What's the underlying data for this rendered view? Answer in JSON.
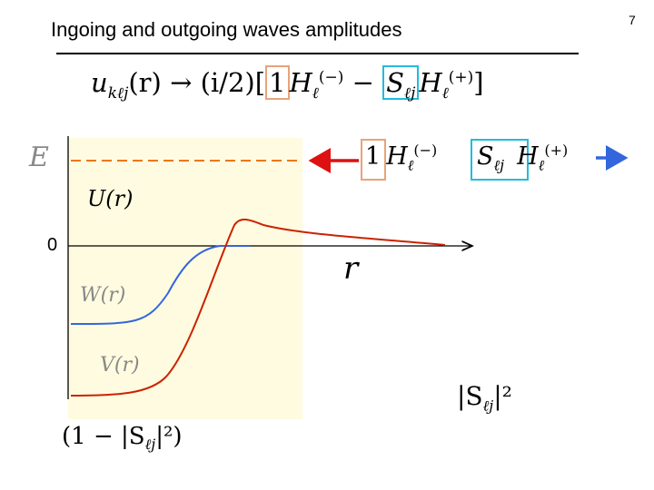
{
  "slide": {
    "title": "Ingoing and outgoing waves amplitudes",
    "page_number": "7"
  },
  "formula": {
    "lhs": "u",
    "lhs_sub": "kℓj",
    "lhs_arg": "(r)",
    "arrow": "→",
    "factor": "(i/2)[",
    "one": "1",
    "h": "H",
    "h_sub": "ℓ",
    "h_minus_sup": "(−)",
    "minus": "−",
    "s": "S",
    "s_sub": "ℓj",
    "h_plus_sup": "(+)",
    "close": "]"
  },
  "diagram": {
    "energy_label": "E",
    "zero_label": "0",
    "u_label": "U(r)",
    "w_label": "W(r)",
    "v_label": "V(r)",
    "r_label": "r",
    "loss_label": "(1 − |S",
    "loss_sub": "ℓj",
    "loss_tail": "|²)",
    "abs_s_label": "|S",
    "abs_s_sub": "ℓj",
    "abs_s_tail": "|²",
    "ingoing_one": "1",
    "ingoing_h": "H",
    "ingoing_sub": "ℓ",
    "ingoing_sup": "(−)",
    "outgoing_s": "S",
    "outgoing_s_sub": "ℓj",
    "outgoing_h": "H",
    "outgoing_h_sub": "ℓ",
    "outgoing_h_sup": "(+)"
  },
  "colors": {
    "region_fill": "#fffbe0",
    "energy_line": "#ee7700",
    "real_potential": "#cc2200",
    "imag_potential": "#3366dd",
    "ingoing_arrow": "#dd1111",
    "outgoing_arrow": "#3366dd",
    "box_one": "#e8a37a",
    "box_s": "#22bbdd",
    "faded_text": "#888888"
  }
}
